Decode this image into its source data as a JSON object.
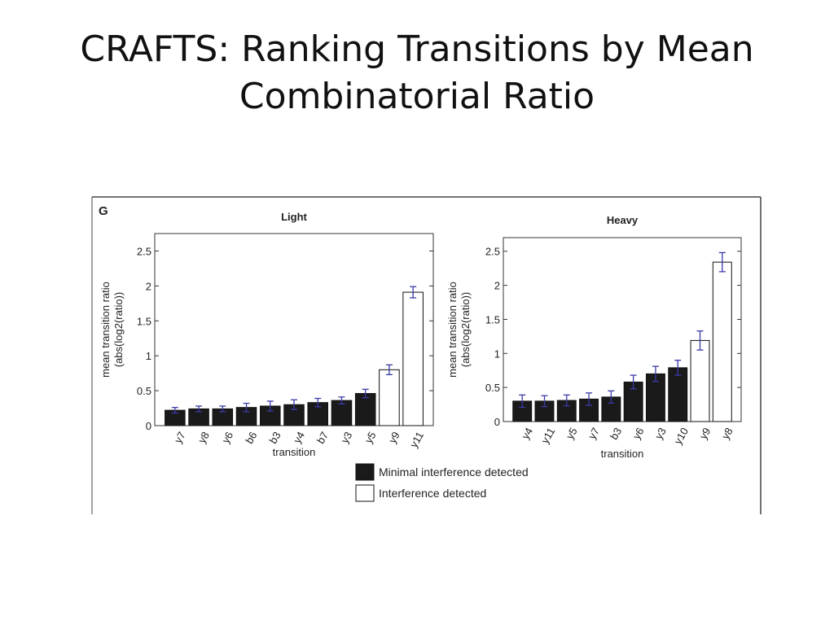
{
  "slide": {
    "title_line1": "CRAFTS: Ranking Transitions by Mean",
    "title_line2": "Combinatorial Ratio"
  },
  "figure": {
    "panel_label": "G",
    "legend": [
      {
        "label": "Minimal interference detected",
        "fill": "#1a1a1a"
      },
      {
        "label": "Interference detected",
        "fill": "#ffffff"
      }
    ]
  },
  "colors": {
    "filled_bar": "#1a1a1a",
    "open_bar": "#ffffff",
    "error_bar": "#3a3aa8",
    "axis": "#333333"
  },
  "chart_data": [
    {
      "type": "bar",
      "title": "Light",
      "xlabel": "transition",
      "ylabel_line1": "mean transition ratio",
      "ylabel_line2": "(abs(log2(ratio))",
      "ylim": [
        0,
        2.75
      ],
      "yticks": [
        "0",
        "0.5",
        "1",
        "1.5",
        "2",
        "2.5"
      ],
      "categories": [
        "y7",
        "y8",
        "y6",
        "b6",
        "b3",
        "y4",
        "b7",
        "y3",
        "y5",
        "y9",
        "y11"
      ],
      "values": [
        0.22,
        0.24,
        0.24,
        0.26,
        0.28,
        0.3,
        0.33,
        0.36,
        0.46,
        0.8,
        1.91
      ],
      "errors": [
        0.04,
        0.04,
        0.04,
        0.06,
        0.07,
        0.07,
        0.06,
        0.05,
        0.06,
        0.07,
        0.08
      ],
      "interference": [
        false,
        false,
        false,
        false,
        false,
        false,
        false,
        false,
        false,
        true,
        true
      ]
    },
    {
      "type": "bar",
      "title": "Heavy",
      "xlabel": "transition",
      "ylabel_line1": "mean transition ratio",
      "ylabel_line2": "(abs(log2(ratio))",
      "ylim": [
        0,
        2.7
      ],
      "yticks": [
        "0",
        "0.5",
        "1",
        "1.5",
        "2",
        "2.5"
      ],
      "categories": [
        "y4",
        "y11",
        "y5",
        "y7",
        "b3",
        "y6",
        "y3",
        "y10",
        "y9",
        "y8"
      ],
      "values": [
        0.3,
        0.3,
        0.31,
        0.33,
        0.36,
        0.58,
        0.7,
        0.79,
        1.19,
        2.34
      ],
      "errors": [
        0.09,
        0.08,
        0.08,
        0.09,
        0.09,
        0.1,
        0.11,
        0.11,
        0.14,
        0.14
      ],
      "interference": [
        false,
        false,
        false,
        false,
        false,
        false,
        false,
        false,
        true,
        true
      ]
    }
  ]
}
